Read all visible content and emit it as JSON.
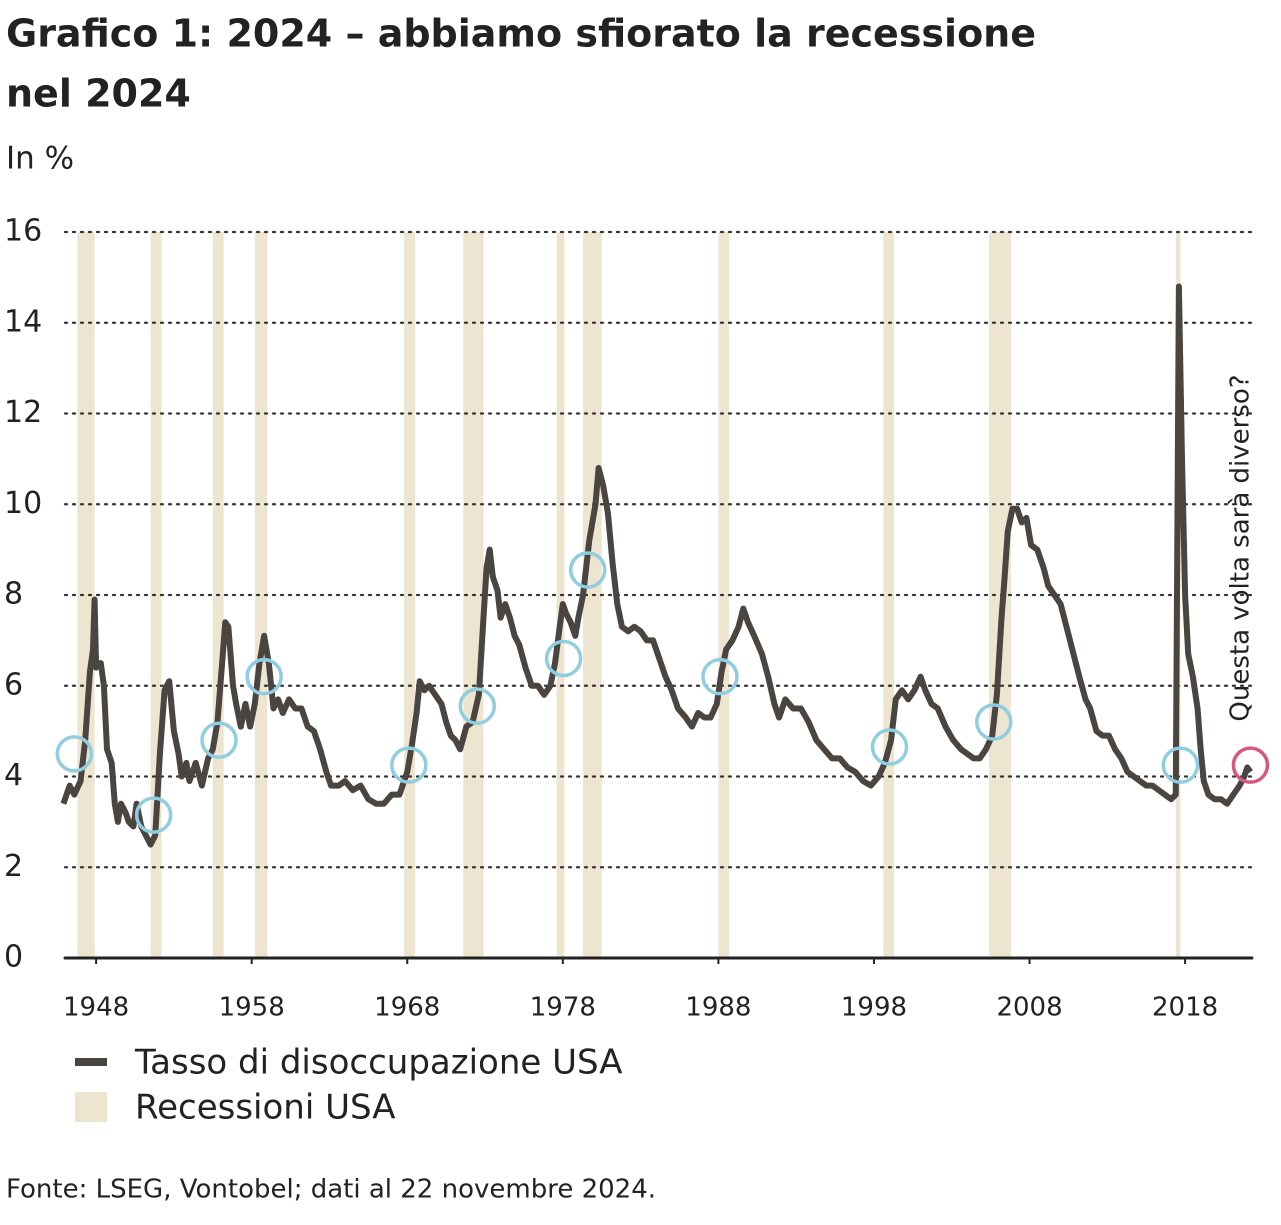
{
  "chart_data": {
    "type": "line",
    "title": "Grafico 1: 2024 – abbiamo sfiorato la recessione nel 2024",
    "subtitle": "In %",
    "source": "Fonte: LSEG, Vontobel; dati al 22 novembre 2024.",
    "annotation": "Questa volta sarà diverso?",
    "xlim": [
      1946,
      2022.3
    ],
    "xticks": [
      1948,
      1958,
      1968,
      1978,
      1988,
      1998,
      2008,
      2018
    ],
    "ylim": [
      0,
      16
    ],
    "yticks": [
      0,
      2,
      4,
      6,
      8,
      10,
      12,
      14,
      16
    ],
    "grid": true,
    "x": [
      1945.9,
      1946.3,
      1946.6,
      1947.0,
      1947.3,
      1947.6,
      1947.8,
      1947.9,
      1948.0,
      1948.3,
      1948.5,
      1948.7,
      1949.0,
      1949.2,
      1949.4,
      1949.6,
      1949.9,
      1950.1,
      1950.4,
      1950.6,
      1950.9,
      1951.2,
      1951.5,
      1951.8,
      1952.1,
      1952.4,
      1952.7,
      1953.0,
      1953.3,
      1953.5,
      1953.8,
      1954.0,
      1954.4,
      1954.8,
      1955.2,
      1955.5,
      1955.8,
      1956.1,
      1956.3,
      1956.5,
      1956.8,
      1957.0,
      1957.3,
      1957.6,
      1957.9,
      1958.2,
      1958.5,
      1958.8,
      1959.1,
      1959.4,
      1959.7,
      1960.0,
      1960.4,
      1960.8,
      1961.2,
      1961.6,
      1962.0,
      1962.4,
      1962.8,
      1963.1,
      1963.6,
      1964.0,
      1964.5,
      1965.0,
      1965.5,
      1966.0,
      1966.5,
      1967.0,
      1967.5,
      1968.0,
      1968.3,
      1968.6,
      1968.8,
      1969.1,
      1969.4,
      1969.8,
      1970.2,
      1970.5,
      1970.8,
      1971.1,
      1971.4,
      1971.8,
      1972.2,
      1972.6,
      1972.9,
      1973.1,
      1973.3,
      1973.5,
      1973.8,
      1974.0,
      1974.3,
      1974.6,
      1974.9,
      1975.2,
      1975.6,
      1976.0,
      1976.4,
      1976.8,
      1977.2,
      1977.5,
      1977.8,
      1978.0,
      1978.2,
      1978.5,
      1978.8,
      1979.0,
      1979.3,
      1979.7,
      1980.1,
      1980.3,
      1980.6,
      1980.9,
      1981.2,
      1981.5,
      1981.8,
      1982.2,
      1982.6,
      1983.0,
      1983.4,
      1983.8,
      1984.2,
      1984.6,
      1985.0,
      1985.4,
      1985.9,
      1986.3,
      1986.7,
      1987.1,
      1987.5,
      1987.9,
      1988.2,
      1988.5,
      1988.9,
      1989.3,
      1989.6,
      1989.9,
      1990.3,
      1990.8,
      1991.2,
      1991.6,
      1991.9,
      1992.3,
      1992.8,
      1993.3,
      1993.8,
      1994.3,
      1994.8,
      1995.3,
      1995.8,
      1996.3,
      1996.8,
      1997.3,
      1997.8,
      1998.3,
      1998.7,
      1999.1,
      1999.4,
      1999.8,
      2000.2,
      2000.6,
      2001.0,
      2001.3,
      2001.7,
      2002.1,
      2002.6,
      2003.1,
      2003.6,
      2004.0,
      2004.4,
      2004.8,
      2005.2,
      2005.6,
      2005.9,
      2006.2,
      2006.4,
      2006.6,
      2006.9,
      2007.2,
      2007.5,
      2007.8,
      2008.1,
      2008.5,
      2008.9,
      2009.2,
      2009.6,
      2010.0,
      2010.3,
      2010.6,
      2010.9,
      2011.2,
      2011.6,
      2011.9,
      2012.3,
      2012.7,
      2013.1,
      2013.5,
      2013.9,
      2014.3,
      2014.7,
      2015.1,
      2015.5,
      2015.9,
      2016.3,
      2016.7,
      2017.1,
      2017.4,
      2017.6,
      2017.8,
      2018.0,
      2018.2,
      2018.5,
      2018.8,
      2019.0,
      2019.2,
      2019.5,
      2019.9,
      2020.3,
      2020.7,
      2021.1,
      2021.5,
      2021.8,
      2022.0,
      2022.2
    ],
    "series": [
      {
        "name": "Tasso di disoccupazione USA",
        "color": "#4a4541",
        "values": [
          3.4,
          3.8,
          3.6,
          3.9,
          4.8,
          6.3,
          6.8,
          7.9,
          6.4,
          6.5,
          6.0,
          4.6,
          4.3,
          3.4,
          3.0,
          3.4,
          3.2,
          3.0,
          2.9,
          3.4,
          2.9,
          2.7,
          2.5,
          2.7,
          4.5,
          5.9,
          6.1,
          5.0,
          4.5,
          4.0,
          4.3,
          3.9,
          4.3,
          3.8,
          4.4,
          4.6,
          5.2,
          6.5,
          7.4,
          7.3,
          6.0,
          5.6,
          5.1,
          5.6,
          5.1,
          5.6,
          6.5,
          7.1,
          6.5,
          5.5,
          5.7,
          5.4,
          5.7,
          5.5,
          5.5,
          5.1,
          5.0,
          4.6,
          4.1,
          3.8,
          3.8,
          3.9,
          3.7,
          3.8,
          3.5,
          3.4,
          3.4,
          3.6,
          3.6,
          4.1,
          4.7,
          5.4,
          6.1,
          5.9,
          6.0,
          5.8,
          5.6,
          5.2,
          4.9,
          4.8,
          4.6,
          5.1,
          5.2,
          5.8,
          7.5,
          8.6,
          9.0,
          8.4,
          8.1,
          7.5,
          7.8,
          7.5,
          7.1,
          6.9,
          6.4,
          6.0,
          6.0,
          5.8,
          6.0,
          6.5,
          7.3,
          7.8,
          7.6,
          7.4,
          7.1,
          7.5,
          8.0,
          9.2,
          10.0,
          10.8,
          10.4,
          9.8,
          8.7,
          7.8,
          7.3,
          7.2,
          7.3,
          7.2,
          7.0,
          7.0,
          6.6,
          6.2,
          5.9,
          5.5,
          5.3,
          5.1,
          5.4,
          5.3,
          5.3,
          5.6,
          6.3,
          6.8,
          7.0,
          7.3,
          7.7,
          7.4,
          7.1,
          6.7,
          6.2,
          5.6,
          5.3,
          5.7,
          5.5,
          5.5,
          5.2,
          4.8,
          4.6,
          4.4,
          4.4,
          4.2,
          4.1,
          3.9,
          3.8,
          4.0,
          4.3,
          4.8,
          5.7,
          5.9,
          5.7,
          5.9,
          6.2,
          5.9,
          5.6,
          5.5,
          5.1,
          4.8,
          4.6,
          4.5,
          4.4,
          4.4,
          4.6,
          4.9,
          5.8,
          7.5,
          8.4,
          9.4,
          9.9,
          9.9,
          9.6,
          9.7,
          9.1,
          9.0,
          8.6,
          8.2,
          8.0,
          7.8,
          7.4,
          7.0,
          6.6,
          6.2,
          5.7,
          5.5,
          5.0,
          4.9,
          4.9,
          4.6,
          4.4,
          4.1,
          4.0,
          3.9,
          3.8,
          3.8,
          3.7,
          3.6,
          3.5,
          3.6,
          14.8,
          11.0,
          8.0,
          6.7,
          6.2,
          5.5,
          4.6,
          3.9,
          3.6,
          3.5,
          3.5,
          3.4,
          3.6,
          3.8,
          4.0,
          4.2,
          4.1
        ]
      }
    ],
    "recessions": {
      "name": "Recessioni USA",
      "color": "#ede5cf",
      "spans": [
        [
          1946.8,
          1947.9
        ],
        [
          1951.5,
          1952.2
        ],
        [
          1955.5,
          1956.2
        ],
        [
          1958.2,
          1959.0
        ],
        [
          1967.8,
          1968.5
        ],
        [
          1971.6,
          1972.9
        ],
        [
          1977.6,
          1978.1
        ],
        [
          1979.3,
          1980.5
        ],
        [
          1988.0,
          1988.7
        ],
        [
          1998.6,
          1999.3
        ],
        [
          2005.4,
          2006.8
        ],
        [
          2017.4,
          2017.7
        ]
      ]
    },
    "markers": {
      "color": "#8fcde0",
      "x": [
        1946.6,
        1951.7,
        1955.9,
        1958.8,
        1968.1,
        1972.5,
        1978.05,
        1979.6,
        1988.1,
        1999.0,
        2005.7,
        2017.7
      ],
      "y": [
        4.5,
        3.15,
        4.8,
        6.2,
        4.25,
        5.55,
        6.6,
        8.55,
        6.2,
        4.65,
        5.2,
        4.25
      ]
    },
    "highlight": {
      "color": "#d8587d",
      "x": 2022.2,
      "y": 4.25
    }
  }
}
